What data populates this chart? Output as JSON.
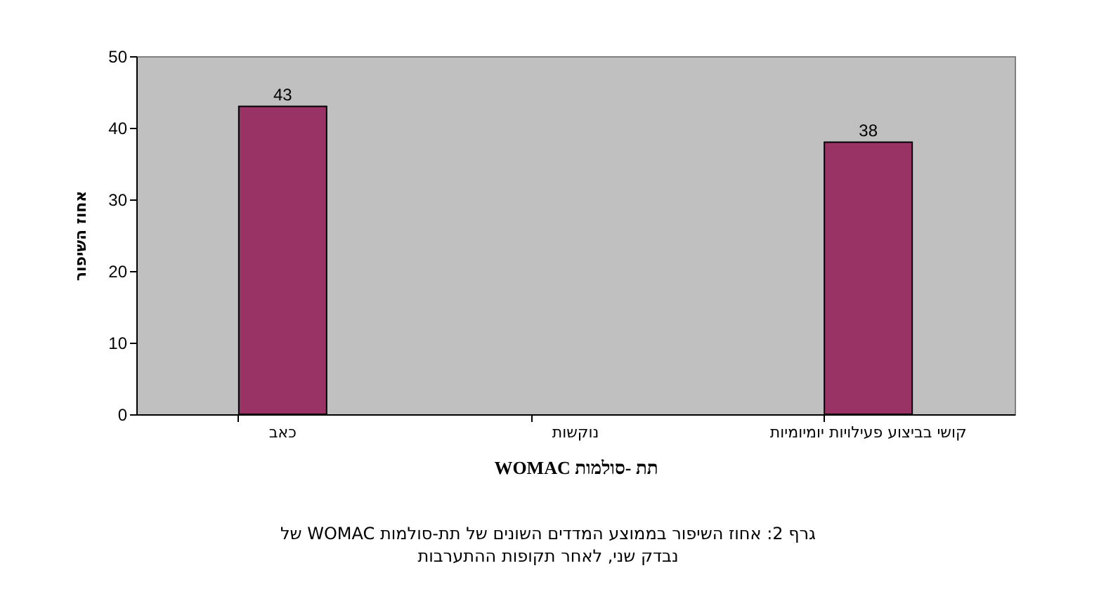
{
  "chart_data": {
    "type": "bar",
    "categories": [
      "כאב",
      "נוקשות",
      "קושי בביצוע פעילויות יומיומיות"
    ],
    "values": [
      43,
      null,
      38
    ],
    "color": "#993366",
    "xlabel": "תת -סולמות WOMAC",
    "ylabel": "אחוז השיפור",
    "ylim": [
      0,
      50
    ],
    "yticks": [
      0,
      10,
      20,
      30,
      40,
      50
    ],
    "data_labels": true,
    "grid": false,
    "annotations": [
      "גרף 2: אחוז השיפור בממוצע המדדים השונים של תת-סולמות WOMAC של",
      "נבדק שני, לאחר תקופות ההתערבות"
    ]
  }
}
